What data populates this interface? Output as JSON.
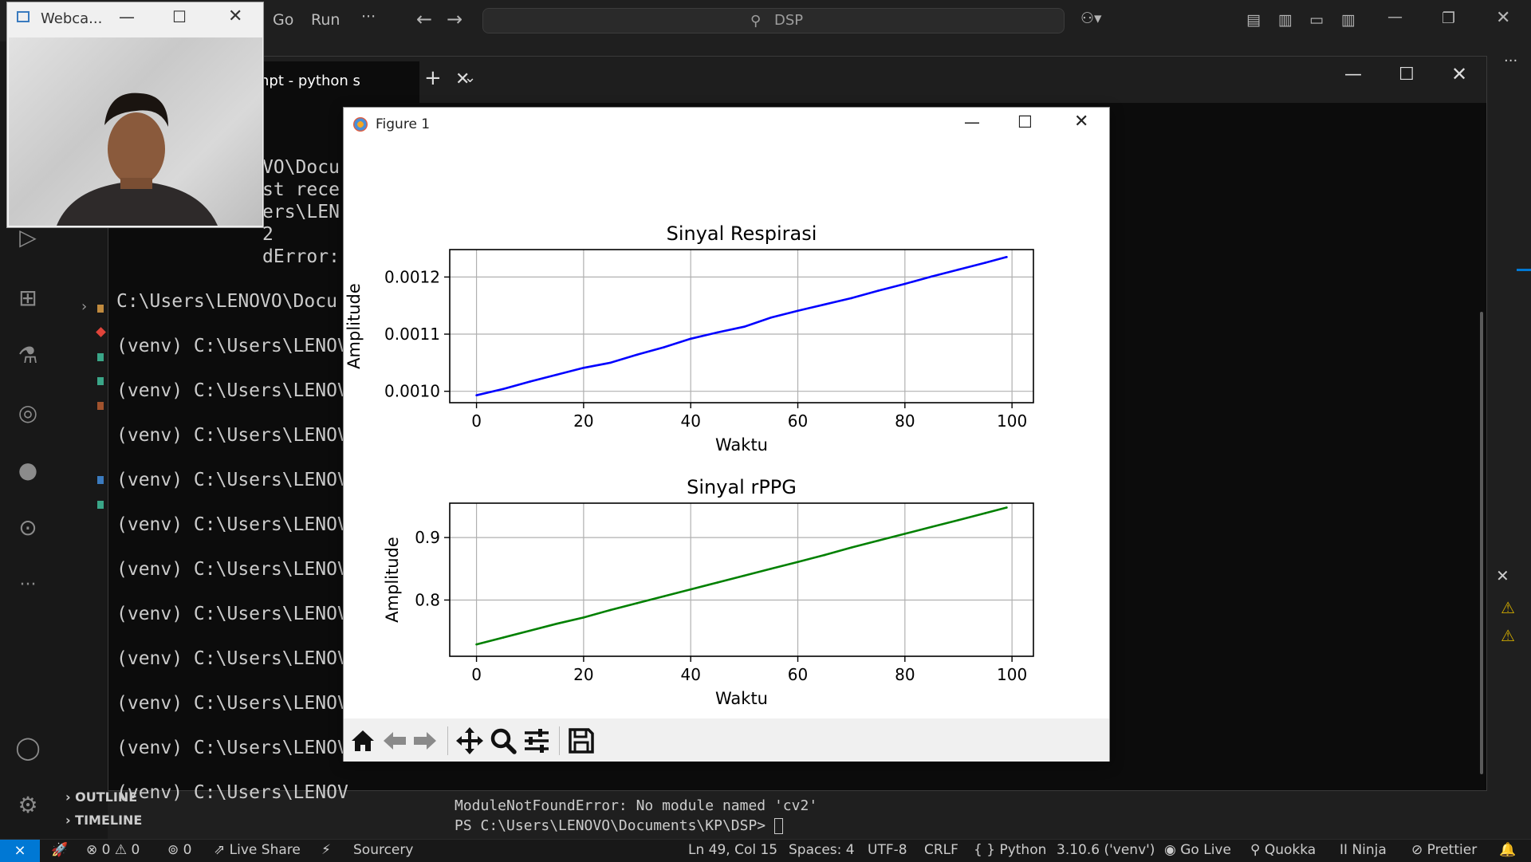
{
  "vscode": {
    "menu": [
      "Go",
      "Run",
      "···"
    ],
    "search_text": "DSP",
    "explorer": {
      "outline_label": "OUTLINE",
      "timeline_label": "TIMELINE"
    },
    "panel_lines": [
      "ModuleNotFoundError: No module named 'cv2'",
      "PS C:\\Users\\LENOVO\\Documents\\KP\\DSP>"
    ],
    "status": {
      "errors": "0",
      "warnings": "0",
      "ports": "0",
      "live_share": "Live Share",
      "sourcery": "Sourcery",
      "position": "Ln 49, Col 15",
      "spaces": "Spaces: 4",
      "encoding": "UTF-8",
      "eol": "CRLF",
      "language": "Python",
      "interpreter": "3.10.6 ('venv')",
      "go_live": "Go Live",
      "quokka": "Quokka",
      "ninja": "Ninja",
      "prettier": "Prettier"
    }
  },
  "terminal": {
    "tab_title": "npt - python  s",
    "lines": [
      "VO\\Docu",
      "st rece",
      "ers\\LEN",
      "2",
      "dError:",
      "C:\\Users\\LENOVO\\Docu",
      "(venv) C:\\Users\\LENOV",
      "(venv) C:\\Users\\LENOV",
      "(venv) C:\\Users\\LENOV",
      "(venv) C:\\Users\\LENOV",
      "(venv) C:\\Users\\LENOV",
      "(venv) C:\\Users\\LENOV",
      "(venv) C:\\Users\\LENOV",
      "(venv) C:\\Users\\LENOV",
      "(venv) C:\\Users\\LENOV",
      "(venv) C:\\Users\\LENOV",
      "(venv) C:\\Users\\LENOV"
    ]
  },
  "webcam": {
    "title": "Webca..."
  },
  "figure": {
    "title": "Figure 1"
  },
  "chart_data": [
    {
      "type": "line",
      "title": "Sinyal Respirasi",
      "xlabel": "Waktu",
      "ylabel": "Amplitude",
      "xlim": [
        -5,
        104
      ],
      "ylim": [
        0.00098,
        0.001248
      ],
      "xticks": [
        0,
        20,
        40,
        60,
        80,
        100
      ],
      "yticks": [
        0.001,
        0.0011,
        0.0012
      ],
      "ytick_labels": [
        "0.0010",
        "0.0011",
        "0.0012"
      ],
      "grid": true,
      "color": "#0000ff",
      "x": [
        0,
        5,
        10,
        15,
        20,
        25,
        30,
        35,
        40,
        45,
        50,
        55,
        60,
        65,
        70,
        75,
        80,
        85,
        90,
        95,
        99
      ],
      "y": [
        0.000993,
        0.001004,
        0.001017,
        0.001029,
        0.001041,
        0.00105,
        0.001064,
        0.001077,
        0.001092,
        0.001103,
        0.001113,
        0.001129,
        0.001141,
        0.001152,
        0.001163,
        0.001176,
        0.001188,
        0.001201,
        0.001213,
        0.001225,
        0.001235
      ]
    },
    {
      "type": "line",
      "title": "Sinyal rPPG",
      "xlabel": "Waktu",
      "ylabel": "Amplitude",
      "xlim": [
        -5,
        104
      ],
      "ylim": [
        0.71,
        0.955
      ],
      "xticks": [
        0,
        20,
        40,
        60,
        80,
        100
      ],
      "yticks": [
        0.8,
        0.9
      ],
      "ytick_labels": [
        "0.8",
        "0.9"
      ],
      "grid": true,
      "color": "#008000",
      "x": [
        0,
        5,
        10,
        15,
        20,
        25,
        30,
        35,
        40,
        45,
        50,
        55,
        60,
        65,
        70,
        75,
        80,
        85,
        90,
        95,
        99
      ],
      "y": [
        0.729,
        0.74,
        0.751,
        0.762,
        0.772,
        0.784,
        0.795,
        0.806,
        0.817,
        0.828,
        0.839,
        0.85,
        0.861,
        0.872,
        0.884,
        0.895,
        0.906,
        0.917,
        0.928,
        0.939,
        0.948
      ]
    }
  ]
}
